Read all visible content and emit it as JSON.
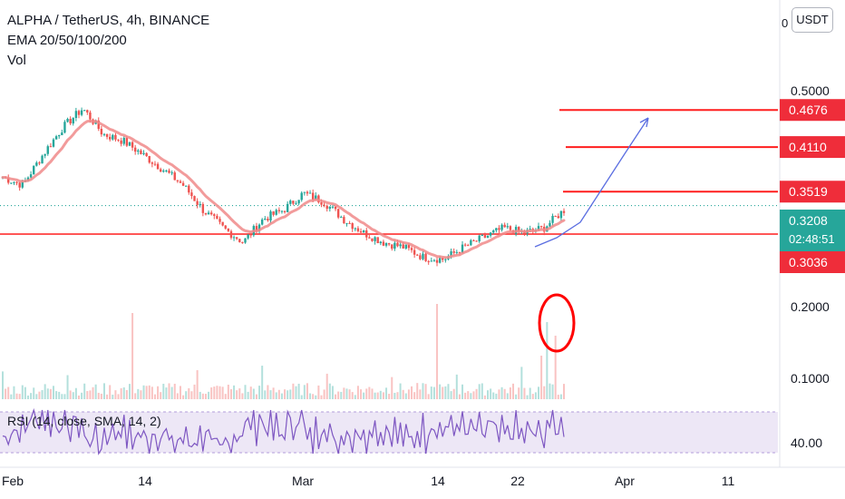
{
  "header": {
    "symbol_line": "ALPHA / TetherUS, 4h, BINANCE",
    "ema_line": "EMA 20/50/100/200",
    "vol_line": "Vol"
  },
  "top_axis_partial": "0",
  "unit_button": "USDT",
  "rsi_label": "RSI (14, close, SMA, 14, 2)",
  "colors": {
    "up": "#26a69a",
    "down": "#ef5350",
    "ema": "#f08a8a",
    "level_line": "#ff1e1e",
    "projection": "#5b6ee1",
    "current_price": "#26a69a",
    "rsi_line": "#7e57c2",
    "rsi_band": "#ede7f6",
    "annotation": "#ff0000"
  },
  "chart_data": {
    "type": "candlestick",
    "title": "ALPHA / TetherUS, 4h, BINANCE",
    "timeframe": "4h",
    "price_axis_ticks": [
      0.5,
      0.2,
      0.1
    ],
    "price_axis_tick_labels": [
      "0.5000",
      "0.2000",
      "0.1000"
    ],
    "time_axis_ticks": [
      "Feb",
      "14",
      "Mar",
      "14",
      "22",
      "Apr",
      "11"
    ],
    "price_labels": [
      {
        "value": "0.4676",
        "kind": "level"
      },
      {
        "value": "0.4110",
        "kind": "level"
      },
      {
        "value": "0.3519",
        "kind": "level"
      },
      {
        "value": "0.3208",
        "kind": "current",
        "countdown": "02:48:51"
      },
      {
        "value": "0.3036",
        "kind": "level"
      }
    ],
    "horizontal_levels": [
      0.4676,
      0.411,
      0.3519,
      0.3036
    ],
    "current_price": 0.3208,
    "rsi_axis_label": "40.00",
    "approx_close_path": [
      0.37,
      0.36,
      0.4,
      0.44,
      0.47,
      0.43,
      0.42,
      0.4,
      0.38,
      0.36,
      0.33,
      0.31,
      0.295,
      0.32,
      0.33,
      0.35,
      0.34,
      0.32,
      0.305,
      0.295,
      0.29,
      0.28,
      0.278,
      0.29,
      0.3,
      0.31,
      0.305,
      0.31,
      0.33
    ],
    "annotations": [
      "projection-arrow",
      "volume-circle"
    ]
  }
}
